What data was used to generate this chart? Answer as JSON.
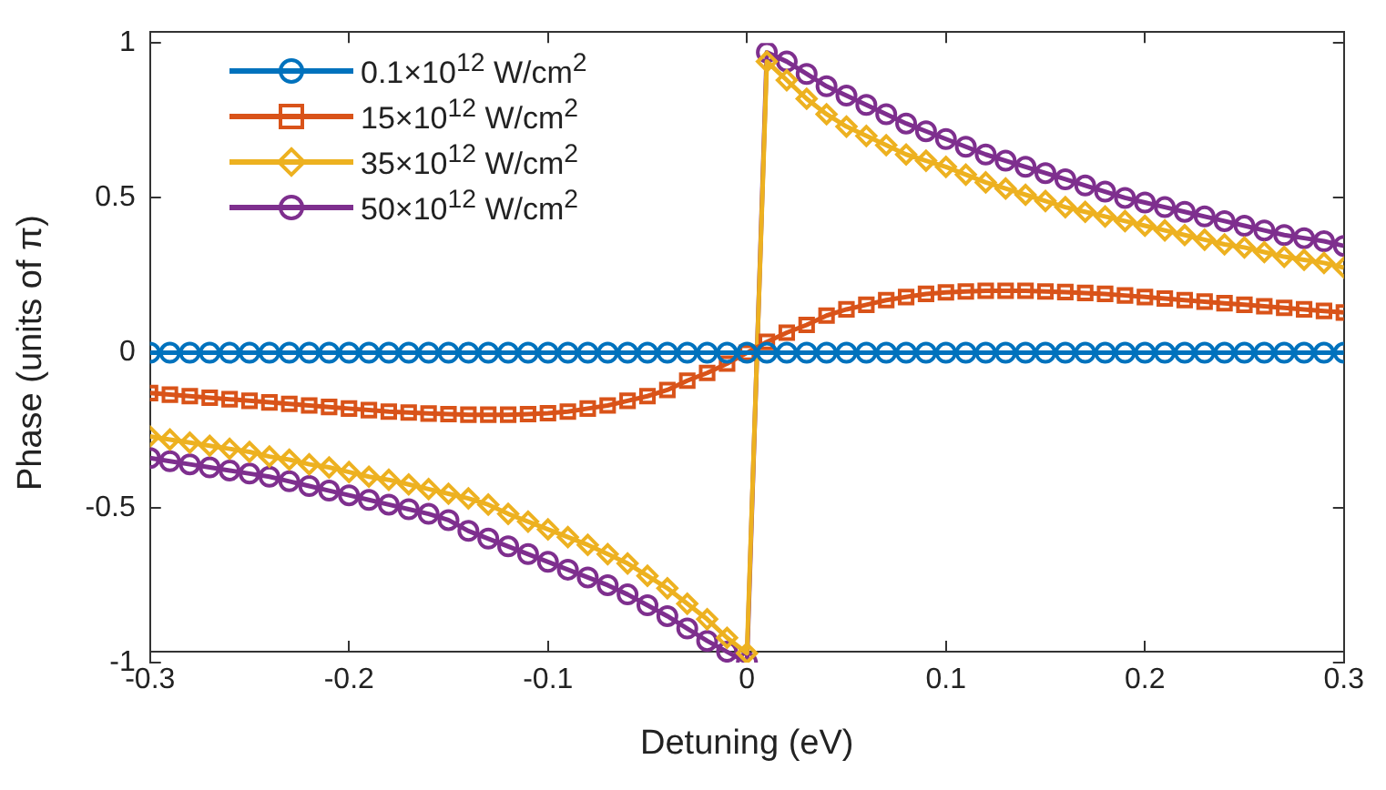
{
  "chart_data": {
    "type": "line",
    "xlabel": "Detuning (eV)",
    "ylabel": "Phase (units of π)",
    "x": [
      -0.3,
      -0.29,
      -0.28,
      -0.27,
      -0.26,
      -0.25,
      -0.24,
      -0.23,
      -0.22,
      -0.21,
      -0.2,
      -0.19,
      -0.18,
      -0.17,
      -0.16,
      -0.15,
      -0.14,
      -0.13,
      -0.12,
      -0.11,
      -0.1,
      -0.09,
      -0.08,
      -0.07,
      -0.06,
      -0.05,
      -0.04,
      -0.03,
      -0.02,
      -0.01,
      0,
      0.01,
      0.02,
      0.03,
      0.04,
      0.05,
      0.06,
      0.07,
      0.08,
      0.09,
      0.1,
      0.11,
      0.12,
      0.13,
      0.14,
      0.15,
      0.16,
      0.17,
      0.18,
      0.19,
      0.2,
      0.21,
      0.22,
      0.23,
      0.24,
      0.25,
      0.26,
      0.27,
      0.28,
      0.29,
      0.3
    ],
    "series": [
      {
        "name": "0.1×10$^{12}$ W/cm$^{2}$",
        "color": "#0072bd",
        "marker": "circle",
        "values": [
          0,
          0,
          0,
          0,
          0,
          0,
          0,
          0,
          0,
          0,
          0,
          0,
          0,
          0,
          0,
          0,
          0,
          0,
          0,
          0,
          0,
          0,
          0,
          0,
          0,
          0,
          0,
          0,
          0,
          0,
          0,
          0,
          0,
          0,
          0,
          0,
          0,
          0,
          0,
          0,
          0,
          0,
          0,
          0,
          0,
          0,
          0,
          0,
          0,
          0,
          0,
          0,
          0,
          0,
          0,
          0,
          0,
          0,
          0,
          0,
          0
        ]
      },
      {
        "name": "15×10$^{12}$ W/cm$^{2}$",
        "color": "#d95319",
        "marker": "square",
        "values": [
          -0.13,
          -0.135,
          -0.14,
          -0.145,
          -0.15,
          -0.155,
          -0.16,
          -0.165,
          -0.17,
          -0.175,
          -0.18,
          -0.185,
          -0.19,
          -0.193,
          -0.196,
          -0.198,
          -0.2,
          -0.2,
          -0.2,
          -0.198,
          -0.195,
          -0.19,
          -0.18,
          -0.17,
          -0.155,
          -0.14,
          -0.12,
          -0.09,
          -0.065,
          -0.035,
          0,
          0.035,
          0.065,
          0.09,
          0.12,
          0.14,
          0.155,
          0.17,
          0.18,
          0.19,
          0.195,
          0.198,
          0.2,
          0.2,
          0.2,
          0.198,
          0.196,
          0.193,
          0.19,
          0.185,
          0.18,
          0.175,
          0.17,
          0.165,
          0.16,
          0.155,
          0.15,
          0.145,
          0.14,
          0.135,
          0.13
        ]
      },
      {
        "name": "35×10$^{12}$ W/cm$^{2}$",
        "color": "#edb120",
        "marker": "diamond",
        "values": [
          -0.27,
          -0.28,
          -0.29,
          -0.3,
          -0.31,
          -0.32,
          -0.335,
          -0.345,
          -0.36,
          -0.37,
          -0.385,
          -0.4,
          -0.41,
          -0.425,
          -0.44,
          -0.455,
          -0.47,
          -0.49,
          -0.52,
          -0.545,
          -0.57,
          -0.595,
          -0.62,
          -0.65,
          -0.68,
          -0.72,
          -0.76,
          -0.81,
          -0.86,
          -0.92,
          -0.97,
          0.94,
          0.88,
          0.82,
          0.77,
          0.73,
          0.7,
          0.67,
          0.64,
          0.62,
          0.6,
          0.575,
          0.55,
          0.53,
          0.51,
          0.49,
          0.47,
          0.455,
          0.44,
          0.425,
          0.41,
          0.395,
          0.38,
          0.365,
          0.35,
          0.34,
          0.325,
          0.31,
          0.3,
          0.29,
          0.275
        ]
      },
      {
        "name": "50×10$^{12}$ W/cm$^{2}$",
        "color": "#7e2f8e",
        "marker": "circle",
        "values": [
          -0.34,
          -0.35,
          -0.36,
          -0.37,
          -0.38,
          -0.39,
          -0.4,
          -0.415,
          -0.43,
          -0.445,
          -0.46,
          -0.475,
          -0.49,
          -0.505,
          -0.52,
          -0.54,
          -0.575,
          -0.6,
          -0.625,
          -0.65,
          -0.675,
          -0.7,
          -0.725,
          -0.75,
          -0.78,
          -0.815,
          -0.85,
          -0.89,
          -0.93,
          -0.965,
          -1,
          0.97,
          0.94,
          0.9,
          0.86,
          0.83,
          0.8,
          0.77,
          0.74,
          0.715,
          0.69,
          0.665,
          0.64,
          0.62,
          0.6,
          0.58,
          0.56,
          0.54,
          0.52,
          0.5,
          0.485,
          0.47,
          0.455,
          0.44,
          0.425,
          0.41,
          0.395,
          0.38,
          0.37,
          0.36,
          0.345
        ]
      }
    ],
    "xlim": [
      -0.3,
      0.3
    ],
    "xticks": [
      -0.3,
      -0.2,
      -0.1,
      0,
      0.1,
      0.2,
      0.3
    ],
    "ylim": [
      -1,
      1
    ],
    "yticks": [
      -1,
      -0.5,
      0,
      0.5,
      1
    ],
    "grid": false,
    "legend": "top left",
    "line_style": "solid"
  }
}
